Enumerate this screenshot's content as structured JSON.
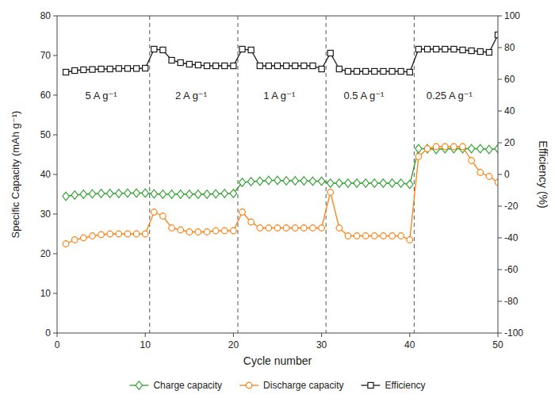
{
  "chart_data": {
    "type": "line",
    "x": [
      1,
      2,
      3,
      4,
      5,
      6,
      7,
      8,
      9,
      10,
      11,
      12,
      13,
      14,
      15,
      16,
      17,
      18,
      19,
      20,
      21,
      22,
      23,
      24,
      25,
      26,
      27,
      28,
      29,
      30,
      31,
      32,
      33,
      34,
      35,
      36,
      37,
      38,
      39,
      40,
      41,
      42,
      43,
      44,
      45,
      46,
      47,
      48,
      49,
      50
    ],
    "series": [
      {
        "name": "Charge capacity",
        "color": "#2ca02c",
        "marker": "diamond",
        "line_style": "solid",
        "values": [
          34.5,
          34.8,
          35.0,
          35.1,
          35.2,
          35.2,
          35.2,
          35.3,
          35.3,
          35.3,
          35.1,
          35.0,
          35.0,
          35.0,
          35.0,
          35.0,
          35.0,
          35.1,
          35.2,
          35.2,
          38.0,
          38.2,
          38.3,
          38.5,
          38.5,
          38.4,
          38.4,
          38.4,
          38.3,
          38.3,
          37.8,
          37.8,
          37.8,
          37.8,
          37.8,
          37.8,
          37.8,
          37.8,
          37.8,
          37.5,
          46.5,
          46.5,
          46.3,
          46.5,
          46.5,
          46.5,
          46.5,
          46.5,
          46.3,
          46.5
        ]
      },
      {
        "name": "Discharge capacity",
        "color": "#ff7f0e",
        "marker": "circle",
        "line_style": "solid",
        "values": [
          22.5,
          23.5,
          24.0,
          24.5,
          24.8,
          25.0,
          25.0,
          25.0,
          25.0,
          25.0,
          30.5,
          29.5,
          26.5,
          26.0,
          25.5,
          25.5,
          25.5,
          25.8,
          25.8,
          25.8,
          30.5,
          28.0,
          26.5,
          26.5,
          26.5,
          26.5,
          26.5,
          26.5,
          26.5,
          26.5,
          35.5,
          26.5,
          24.5,
          24.5,
          24.5,
          24.5,
          24.5,
          24.5,
          24.5,
          23.5,
          44.5,
          46.5,
          47.0,
          47.0,
          47.0,
          47.0,
          43.5,
          40.5,
          39.5,
          38.0
        ]
      },
      {
        "name": "Efficiency",
        "color": "#1a1a1a",
        "marker": "square",
        "line_style": "solid",
        "axis": "y2",
        "values": [
          64.5,
          65.5,
          66.0,
          66.2,
          66.5,
          66.5,
          66.8,
          66.8,
          66.8,
          67.0,
          79.0,
          78.5,
          72.0,
          70.5,
          69.5,
          69.0,
          68.5,
          68.5,
          68.5,
          68.5,
          79.0,
          78.5,
          68.5,
          68.5,
          68.5,
          68.5,
          68.5,
          68.5,
          68.5,
          66.5,
          76.5,
          66.5,
          65.0,
          65.0,
          65.0,
          65.0,
          65.0,
          65.0,
          65.0,
          64.5,
          79.0,
          79.0,
          79.0,
          79.0,
          79.0,
          78.5,
          78.0,
          77.5,
          77.0,
          88.0
        ]
      }
    ],
    "x_label": "Cycle number",
    "y_label": "Specific Capacity (mAh g⁻¹)",
    "y2_label": "Efficiency (%)",
    "xlim": [
      0,
      50
    ],
    "xticks": [
      0,
      10,
      20,
      30,
      40,
      50
    ],
    "ylim": [
      0,
      80
    ],
    "yticks": [
      0,
      10,
      20,
      30,
      40,
      50,
      60,
      70,
      80
    ],
    "y2lim": [
      -100,
      100
    ],
    "y2ticks": [
      -100,
      -80,
      -60,
      -40,
      -20,
      0,
      20,
      40,
      60,
      80,
      100
    ],
    "vlines": {
      "values": [
        10.5,
        20.5,
        30.5,
        40.5
      ],
      "color": "#555555",
      "line_style": "dashed"
    },
    "annotations": [
      {
        "x": 5.0,
        "y": 60,
        "text": "5 A g⁻¹"
      },
      {
        "x": 15.2,
        "y": 60,
        "text": "2 A g⁻¹"
      },
      {
        "x": 25.2,
        "y": 60,
        "text": "1 A g⁻¹"
      },
      {
        "x": 34.8,
        "y": 60,
        "text": "0.5 A g⁻¹"
      },
      {
        "x": 44.5,
        "y": 60,
        "text": "0.25 A g⁻¹"
      }
    ],
    "legend": "bottom",
    "grid": false
  }
}
